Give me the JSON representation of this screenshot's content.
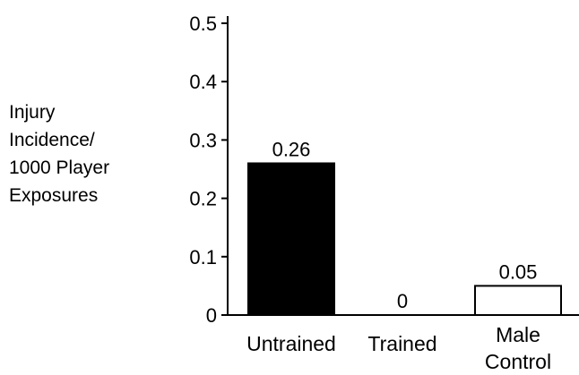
{
  "chart_data": {
    "type": "bar",
    "title": "",
    "xlabel": "",
    "ylabel_lines": [
      "Injury",
      "Incidence/",
      "1000 Player",
      "Exposures"
    ],
    "ylim": [
      0,
      0.5
    ],
    "yticks": [
      {
        "value": 0,
        "label": "0"
      },
      {
        "value": 0.1,
        "label": "0.1"
      },
      {
        "value": 0.2,
        "label": "0.2"
      },
      {
        "value": 0.3,
        "label": "0.3"
      },
      {
        "value": 0.4,
        "label": "0.4"
      },
      {
        "value": 0.5,
        "label": "0.5"
      }
    ],
    "categories": [
      {
        "lines": [
          "Untrained"
        ]
      },
      {
        "lines": [
          "Trained"
        ]
      },
      {
        "lines": [
          "Male",
          "Control"
        ]
      }
    ],
    "values": [
      0.26,
      0,
      0.05
    ],
    "data_labels": [
      "0.26",
      "0",
      "0.05"
    ],
    "fills": [
      "#000000",
      "#ffffff",
      "#ffffff"
    ],
    "grid": false,
    "legend": "none"
  }
}
